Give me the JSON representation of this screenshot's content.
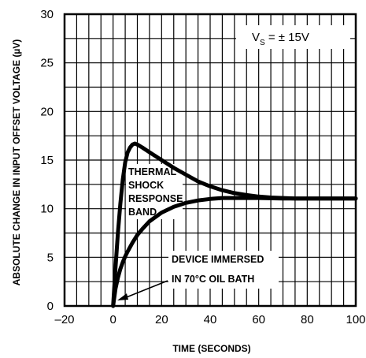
{
  "chart_data": {
    "type": "line",
    "title": "",
    "xlabel": "TIME (SECONDS)",
    "ylabel": "ABSOLUTE CHANGE IN INPUT OFFSET VOLTAGE (µV)",
    "xlim": [
      -20,
      100
    ],
    "ylim": [
      0,
      30
    ],
    "x_ticks": [
      -20,
      0,
      20,
      40,
      60,
      80,
      100
    ],
    "x_tick_labels": [
      "–20",
      "0",
      "20",
      "40",
      "60",
      "80",
      "100"
    ],
    "y_ticks": [
      0,
      5,
      10,
      15,
      20,
      25,
      30
    ],
    "y_tick_labels": [
      "0",
      "5",
      "10",
      "15",
      "20",
      "25",
      "30"
    ],
    "x_minor_step": 5,
    "y_minor_step": 2.5,
    "grid": true,
    "series": [
      {
        "x": [
          0,
          1,
          2,
          3,
          4,
          5,
          6,
          7,
          8,
          9,
          10,
          12,
          15,
          20,
          25,
          30,
          35,
          40,
          45,
          50,
          55,
          60,
          65,
          70,
          75,
          80,
          90,
          100
        ],
        "values": [
          0,
          4.0,
          7.5,
          10.5,
          13.0,
          14.8,
          15.8,
          16.3,
          16.6,
          16.7,
          16.6,
          16.3,
          15.8,
          15.0,
          14.2,
          13.5,
          12.8,
          12.3,
          11.9,
          11.6,
          11.4,
          11.25,
          11.15,
          11.1,
          11.05,
          11.05,
          11.05,
          11.05
        ]
      },
      {
        "x": [
          0,
          1,
          2,
          3,
          4,
          5,
          6,
          8,
          10,
          12,
          15,
          20,
          25,
          30,
          35,
          40,
          45,
          50,
          55,
          60,
          70,
          80,
          90,
          100
        ],
        "values": [
          0,
          1.8,
          2.9,
          3.8,
          4.5,
          5.1,
          5.6,
          6.5,
          7.3,
          7.9,
          8.7,
          9.6,
          10.2,
          10.6,
          10.85,
          11.0,
          11.1,
          11.1,
          11.1,
          11.1,
          11.05,
          11.05,
          11.05,
          11.05
        ]
      }
    ],
    "annotations": {
      "supply": "V",
      "supply_sub": "S",
      "supply_value": " = ± 15V",
      "band_line1": "THERMAL",
      "band_line2": "SHOCK",
      "band_line3": "RESPONSE",
      "band_line4": "BAND",
      "device_line1": "DEVICE IMMERSED",
      "device_line2": "IN 70°C OIL BATH"
    }
  }
}
